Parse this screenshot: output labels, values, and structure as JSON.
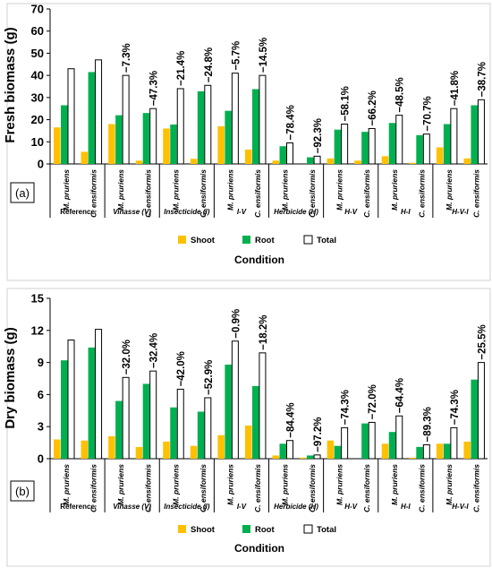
{
  "colors": {
    "shoot": "#FFC000",
    "root": "#00B050",
    "total": "#FFFFFF"
  },
  "chart_data": [
    {
      "type": "bar",
      "panel_label": "(a)",
      "ylabel": "Fresh biomass (g)",
      "xlabel": "Condition",
      "ylim": [
        0,
        70
      ],
      "yticks": [
        0,
        10,
        20,
        30,
        40,
        50,
        60,
        70
      ],
      "legend": [
        "Shoot",
        "Root",
        "Total"
      ],
      "species": [
        "M. pruriens",
        "C. ensiformis"
      ],
      "conditions": [
        "Reference",
        "Vinasse (V)",
        "Insecticide (I)",
        "I-V",
        "Herbicide (H)",
        "H-V",
        "H-I",
        "H-V-I"
      ],
      "series": [
        {
          "name": "Shoot",
          "values": [
            16.5,
            5.5,
            18.0,
            1.5,
            16.0,
            2.3,
            17.0,
            6.5,
            1.5,
            0.0,
            2.5,
            1.5,
            3.5,
            0.5,
            7.5,
            2.5
          ]
        },
        {
          "name": "Root",
          "values": [
            26.5,
            41.5,
            22.0,
            23.0,
            17.8,
            32.8,
            24.0,
            33.8,
            8.0,
            3.0,
            15.5,
            14.5,
            18.5,
            13.0,
            18.0,
            26.5
          ]
        },
        {
          "name": "Total",
          "values": [
            43.0,
            47.0,
            40.0,
            25.0,
            34.0,
            35.5,
            41.0,
            40.0,
            9.5,
            3.5,
            18.0,
            16.0,
            22.0,
            13.5,
            25.0,
            29.0
          ]
        }
      ],
      "annotations": [
        "",
        "",
        "−7.3%",
        "−47.3%",
        "−21.4%",
        "−24.8%",
        "−5.7%",
        "−14.5%",
        "−78.4%",
        "−92.3%",
        "−58.1%",
        "−66.2%",
        "−48.5%",
        "−70.7%",
        "−41.8%",
        "−38.7%"
      ]
    },
    {
      "type": "bar",
      "panel_label": "(b)",
      "ylabel": "Dry biomass (g)",
      "xlabel": "Condition",
      "ylim": [
        0,
        15
      ],
      "yticks": [
        0,
        3,
        6,
        9,
        12,
        15
      ],
      "legend": [
        "Shoot",
        "Root",
        "Total"
      ],
      "species": [
        "M. pruriens",
        "C. ensiformis"
      ],
      "conditions": [
        "Reference",
        "Vinasse (V)",
        "Insecticide (I)",
        "I-V",
        "Herbicide (H)",
        "H-V",
        "H-I",
        "H-V-I"
      ],
      "series": [
        {
          "name": "Shoot",
          "values": [
            1.8,
            1.7,
            2.1,
            1.1,
            1.6,
            1.2,
            2.2,
            3.1,
            0.3,
            0.1,
            1.7,
            0.0,
            1.4,
            0.1,
            1.4,
            1.6
          ]
        },
        {
          "name": "Root",
          "values": [
            9.2,
            10.4,
            5.4,
            7.0,
            4.8,
            4.4,
            8.8,
            6.8,
            1.4,
            0.3,
            1.2,
            3.3,
            2.5,
            1.1,
            1.4,
            7.4
          ]
        },
        {
          "name": "Total",
          "values": [
            11.1,
            12.1,
            7.6,
            8.2,
            6.5,
            5.7,
            11.0,
            9.9,
            1.7,
            0.35,
            2.9,
            3.4,
            4.0,
            1.3,
            2.9,
            9.0
          ]
        }
      ],
      "annotations": [
        "",
        "",
        "−32.0%",
        "−32.4%",
        "−42.0%",
        "−52.9%",
        "−0.9%",
        "−18.2%",
        "−84.4%",
        "−97.2%",
        "−74.3%",
        "−72.0%",
        "−64.4%",
        "−89.3%",
        "−74.3%",
        "−25.5%"
      ]
    }
  ]
}
